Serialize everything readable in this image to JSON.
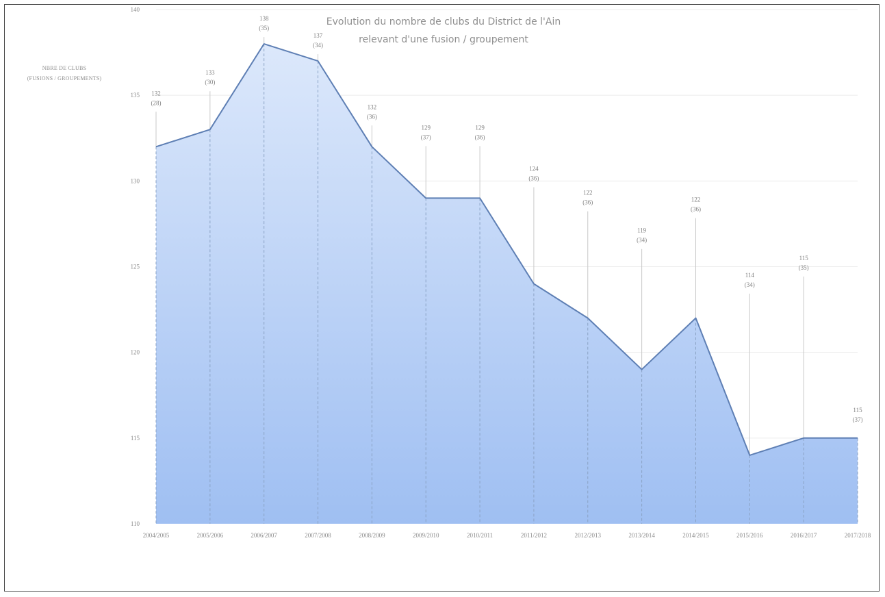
{
  "chart_data": {
    "type": "area",
    "title_lines": [
      "Evolution  du  nombre  de  clubs  du  District  de  l'Ain",
      "relevant  d'une  fusion  /  groupement"
    ],
    "ylabel_lines": [
      "NBRE DE CLUBS",
      "(FUSIONS / GROUPEMENTS)"
    ],
    "ylim": [
      110,
      140
    ],
    "yticks": [
      110,
      115,
      120,
      125,
      130,
      135,
      140
    ],
    "categories": [
      "2004/2005",
      "2005/2006",
      "2006/2007",
      "2007/2008",
      "2008/2009",
      "2009/2010",
      "2010/2011",
      "2011/2012",
      "2012/2013",
      "2013/2014",
      "2014/2015",
      "2015/2016",
      "2016/2017",
      "2017/2018"
    ],
    "values": [
      132,
      133,
      138,
      137,
      132,
      129,
      129,
      124,
      122,
      119,
      122,
      114,
      115,
      115
    ],
    "fusions": [
      "(28)",
      "(30)",
      "(35)",
      "(34)",
      "(36)",
      "(37)",
      "(36)",
      "(36)",
      "(36)",
      "(34)",
      "(36)",
      "(34)",
      "(35)",
      "(37)"
    ],
    "grid": "horizontal",
    "colors": {
      "line": "#5e7fb4",
      "fill_top": "#dce8fb",
      "fill_bottom": "#9fbff2"
    }
  }
}
